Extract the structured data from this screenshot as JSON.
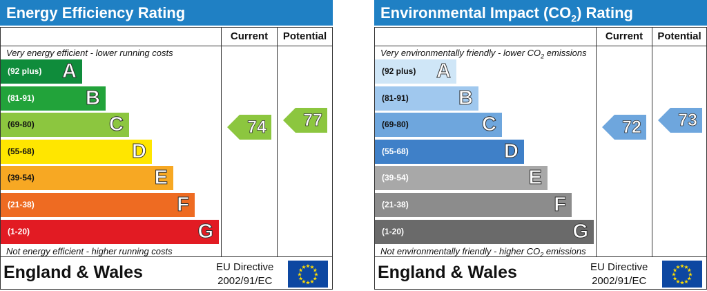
{
  "chart_data": [
    {
      "type": "table",
      "title": "Energy Efficiency Rating",
      "columns": [
        "Current",
        "Potential"
      ],
      "top_note": "Very energy efficient - lower running costs",
      "bottom_note": "Not energy efficient - higher running costs",
      "bands": [
        {
          "range": "(92 plus)",
          "letter": "A",
          "color": "#0f8c3b"
        },
        {
          "range": "(81-91)",
          "letter": "B",
          "color": "#22a33a"
        },
        {
          "range": "(69-80)",
          "letter": "C",
          "color": "#8cc63f"
        },
        {
          "range": "(55-68)",
          "letter": "D",
          "color": "#ffe600"
        },
        {
          "range": "(39-54)",
          "letter": "E",
          "color": "#f7a823"
        },
        {
          "range": "(21-38)",
          "letter": "F",
          "color": "#ee6b22"
        },
        {
          "range": "(1-20)",
          "letter": "G",
          "color": "#e21b23"
        }
      ],
      "current": {
        "value": 74,
        "band": "C",
        "color": "#8cc63f"
      },
      "potential": {
        "value": 77,
        "band": "C",
        "color": "#8cc63f"
      },
      "footer": {
        "country": "England & Wales",
        "directive_line1": "EU Directive",
        "directive_line2": "2002/91/EC"
      }
    },
    {
      "type": "table",
      "title": "Environmental Impact (CO",
      "title_sub": "2",
      "title_end": ") Rating",
      "columns": [
        "Current",
        "Potential"
      ],
      "top_note": "Very environmentally friendly - lower CO",
      "top_note_sub": "2",
      "top_note_end": " emissions",
      "bottom_note": "Not environmentally friendly - higher CO",
      "bottom_note_sub": "2",
      "bottom_note_end": " emissions",
      "bands": [
        {
          "range": "(92 plus)",
          "letter": "A",
          "color": "#cfe6f7"
        },
        {
          "range": "(81-91)",
          "letter": "B",
          "color": "#a0c8ee"
        },
        {
          "range": "(69-80)",
          "letter": "C",
          "color": "#6ea6dd"
        },
        {
          "range": "(55-68)",
          "letter": "D",
          "color": "#3f80c8"
        },
        {
          "range": "(39-54)",
          "letter": "E",
          "color": "#a8a8a8"
        },
        {
          "range": "(21-38)",
          "letter": "F",
          "color": "#8c8c8c"
        },
        {
          "range": "(1-20)",
          "letter": "G",
          "color": "#6a6a6a"
        }
      ],
      "current": {
        "value": 72,
        "band": "C",
        "color": "#6ea6dd"
      },
      "potential": {
        "value": 73,
        "band": "C",
        "color": "#6ea6dd"
      },
      "footer": {
        "country": "England & Wales",
        "directive_line1": "EU Directive",
        "directive_line2": "2002/91/EC"
      }
    }
  ]
}
